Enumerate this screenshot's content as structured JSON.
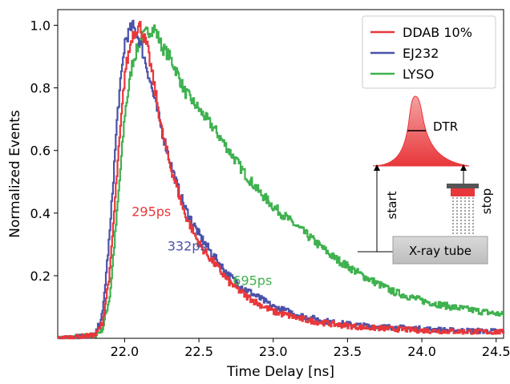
{
  "chart_data": {
    "type": "line",
    "xlabel": "Time Delay [ns]",
    "ylabel": "Normalized Events",
    "xlim": [
      21.55,
      24.55
    ],
    "ylim": [
      0.0,
      1.05
    ],
    "x_ticks": [
      "22.0",
      "22.5",
      "23.0",
      "23.5",
      "24.0",
      "24.5"
    ],
    "y_ticks": [
      "0.2",
      "0.4",
      "0.6",
      "0.8",
      "1.0"
    ],
    "grid": false,
    "legend_position": "top-right",
    "series": [
      {
        "name": "DDAB 10%",
        "color": "#e8373a",
        "x": [
          21.55,
          21.8,
          21.85,
          21.9,
          21.95,
          22.0,
          22.05,
          22.1,
          22.15,
          22.2,
          22.25,
          22.3,
          22.35,
          22.4,
          22.5,
          22.6,
          22.7,
          22.8,
          22.9,
          23.0,
          23.2,
          23.4,
          23.6,
          23.8,
          24.0,
          24.2,
          24.55
        ],
        "y": [
          0.0,
          0.01,
          0.05,
          0.22,
          0.55,
          0.85,
          0.97,
          1.0,
          0.93,
          0.8,
          0.66,
          0.56,
          0.48,
          0.4,
          0.3,
          0.24,
          0.18,
          0.14,
          0.11,
          0.085,
          0.06,
          0.045,
          0.035,
          0.03,
          0.025,
          0.022,
          0.02
        ]
      },
      {
        "name": "EJ232",
        "color": "#4a52a8",
        "x": [
          21.55,
          21.8,
          21.85,
          21.9,
          21.95,
          22.0,
          22.05,
          22.1,
          22.15,
          22.2,
          22.25,
          22.3,
          22.35,
          22.4,
          22.5,
          22.6,
          22.7,
          22.8,
          22.9,
          23.0,
          23.2,
          23.4,
          23.6,
          23.8,
          24.0,
          24.2,
          24.55
        ],
        "y": [
          0.0,
          0.01,
          0.08,
          0.35,
          0.72,
          0.95,
          1.0,
          0.95,
          0.86,
          0.76,
          0.66,
          0.57,
          0.49,
          0.42,
          0.33,
          0.26,
          0.2,
          0.16,
          0.13,
          0.1,
          0.07,
          0.05,
          0.04,
          0.035,
          0.03,
          0.025,
          0.022
        ]
      },
      {
        "name": "LYSO",
        "color": "#3fb14f",
        "x": [
          21.55,
          21.8,
          21.85,
          21.9,
          21.95,
          22.0,
          22.05,
          22.1,
          22.15,
          22.2,
          22.25,
          22.3,
          22.35,
          22.4,
          22.5,
          22.6,
          22.7,
          22.8,
          22.9,
          23.0,
          23.2,
          23.4,
          23.6,
          23.8,
          24.0,
          24.2,
          24.55
        ],
        "y": [
          0.0,
          0.01,
          0.03,
          0.14,
          0.42,
          0.72,
          0.88,
          0.95,
          0.98,
          0.99,
          0.93,
          0.9,
          0.85,
          0.79,
          0.73,
          0.67,
          0.6,
          0.53,
          0.47,
          0.42,
          0.34,
          0.26,
          0.2,
          0.15,
          0.12,
          0.1,
          0.075
        ]
      }
    ],
    "annotations": [
      {
        "text": "295ps",
        "x": 22.18,
        "y": 0.39,
        "color": "#e8373a"
      },
      {
        "text": "332ps",
        "x": 22.42,
        "y": 0.28,
        "color": "#4a52a8"
      },
      {
        "text": "695ps",
        "x": 22.86,
        "y": 0.17,
        "color": "#3fb14f"
      }
    ],
    "inset": {
      "dtr_label": "DTR",
      "start_label": "start",
      "stop_label": "stop",
      "source_label": "X-ray tube"
    }
  }
}
